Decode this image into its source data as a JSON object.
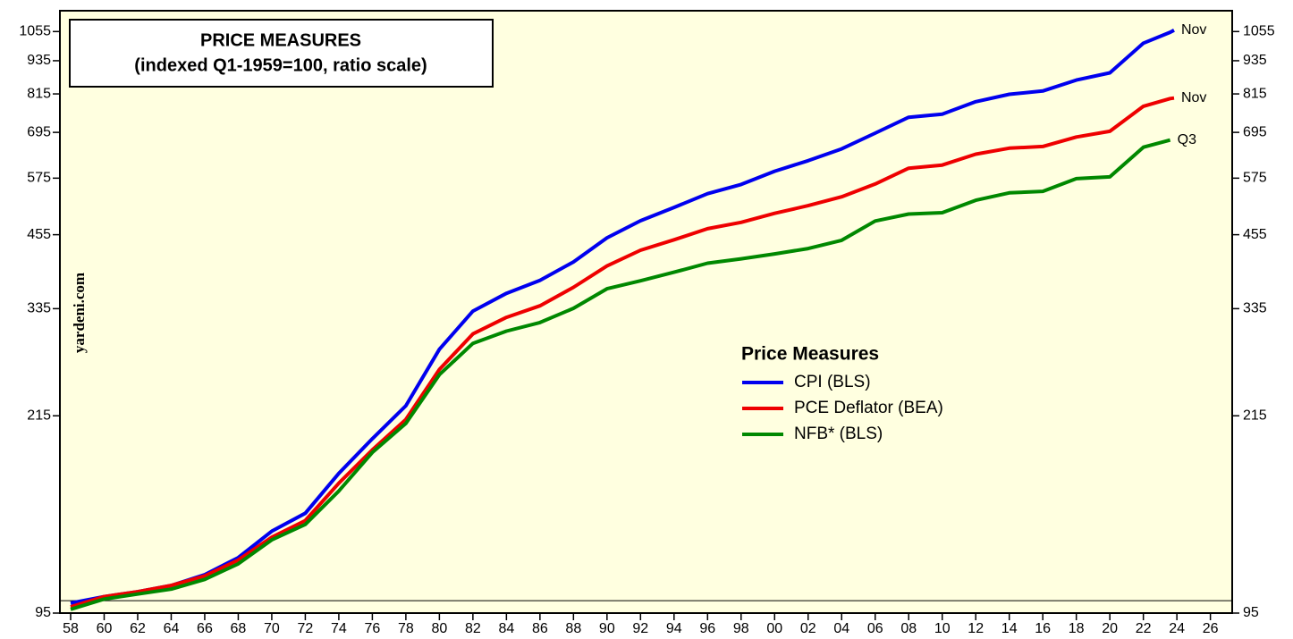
{
  "chart_data": {
    "type": "line",
    "title": "PRICE MEASURES",
    "subtitle": "(indexed Q1-1959=100, ratio scale)",
    "source": "yardeni.com",
    "legend_title": "Price Measures",
    "log_scale": true,
    "baseline": 100,
    "x": [
      1958,
      1960,
      1962,
      1964,
      1966,
      1968,
      1970,
      1972,
      1974,
      1976,
      1978,
      1980,
      1982,
      1984,
      1986,
      1988,
      1990,
      1992,
      1994,
      1996,
      1998,
      2000,
      2002,
      2004,
      2006,
      2008,
      2010,
      2012,
      2014,
      2016,
      2018,
      2020,
      2022,
      2023.6,
      2023.83
    ],
    "series": [
      {
        "name": "CPI (BLS)",
        "color": "#0000ee",
        "end_label": "Nov",
        "values": [
          99.0,
          101.7,
          103.8,
          106.5,
          111.4,
          119.5,
          133.3,
          143.6,
          169.4,
          195.5,
          224.1,
          283.2,
          331.6,
          357.0,
          376.6,
          406.5,
          449.1,
          482.1,
          509.3,
          539.2,
          560.1,
          591.8,
          618.2,
          649.1,
          692.8,
          739.9,
          749.4,
          789.0,
          813.6,
          824.8,
          862.9,
          889.3,
          1005.6,
          1052,
          1061
        ]
      },
      {
        "name": "PCE Deflator (BEA)",
        "color": "#ee0000",
        "end_label": "Nov",
        "values": [
          97.5,
          101.7,
          103.8,
          106.5,
          110.8,
          118.3,
          130.0,
          139.3,
          162.6,
          186.7,
          211.8,
          260.5,
          301.8,
          323.1,
          338.9,
          365.9,
          399.7,
          426.7,
          445.6,
          466.4,
          478.9,
          497.1,
          513.1,
          532.3,
          561.2,
          599.3,
          607.0,
          635.1,
          650.9,
          655.7,
          681.7,
          698.1,
          774.3,
          799.5,
          801.1
        ]
      },
      {
        "name": "NFB* (BLS)",
        "color": "#008800",
        "end_label": "Q3",
        "values": [
          96.5,
          100.7,
          102.8,
          104.9,
          109.2,
          116.5,
          128.6,
          137.1,
          157.5,
          184.7,
          208.4,
          254.9,
          290.2,
          305.2,
          316.3,
          335.4,
          363.8,
          376.0,
          389.6,
          404.4,
          411.7,
          420.2,
          429.6,
          444.6,
          481.5,
          495.7,
          498.4,
          524.7,
          541.0,
          544.4,
          573.8,
          578.0,
          653.6,
          673.3,
          null
        ]
      }
    ],
    "xlim": [
      1957.36,
      2027.3
    ],
    "xticks": [
      {
        "value": 1958,
        "label": "58"
      },
      {
        "value": 1960,
        "label": "60"
      },
      {
        "value": 1962,
        "label": "62"
      },
      {
        "value": 1964,
        "label": "64"
      },
      {
        "value": 1966,
        "label": "66"
      },
      {
        "value": 1968,
        "label": "68"
      },
      {
        "value": 1970,
        "label": "70"
      },
      {
        "value": 1972,
        "label": "72"
      },
      {
        "value": 1974,
        "label": "74"
      },
      {
        "value": 1976,
        "label": "76"
      },
      {
        "value": 1978,
        "label": "78"
      },
      {
        "value": 1980,
        "label": "80"
      },
      {
        "value": 1982,
        "label": "82"
      },
      {
        "value": 1984,
        "label": "84"
      },
      {
        "value": 1986,
        "label": "86"
      },
      {
        "value": 1988,
        "label": "88"
      },
      {
        "value": 1990,
        "label": "90"
      },
      {
        "value": 1992,
        "label": "92"
      },
      {
        "value": 1994,
        "label": "94"
      },
      {
        "value": 1996,
        "label": "96"
      },
      {
        "value": 1998,
        "label": "98"
      },
      {
        "value": 2000,
        "label": "00"
      },
      {
        "value": 2002,
        "label": "02"
      },
      {
        "value": 2004,
        "label": "04"
      },
      {
        "value": 2006,
        "label": "06"
      },
      {
        "value": 2008,
        "label": "08"
      },
      {
        "value": 2010,
        "label": "10"
      },
      {
        "value": 2012,
        "label": "12"
      },
      {
        "value": 2014,
        "label": "14"
      },
      {
        "value": 2016,
        "label": "16"
      },
      {
        "value": 2018,
        "label": "18"
      },
      {
        "value": 2020,
        "label": "20"
      },
      {
        "value": 2022,
        "label": "22"
      },
      {
        "value": 2024,
        "label": "24"
      },
      {
        "value": 2026,
        "label": "26"
      }
    ],
    "ylim": [
      95,
      1150
    ],
    "yticks": [
      95,
      215,
      335,
      455,
      575,
      695,
      815,
      935,
      1055
    ]
  }
}
